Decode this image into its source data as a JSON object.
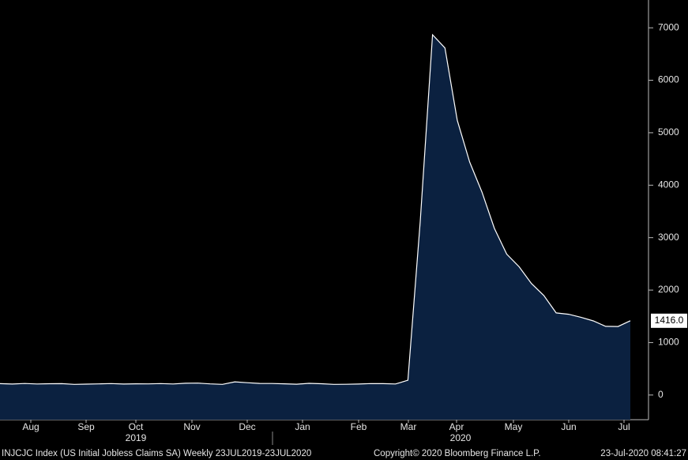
{
  "chart_data": {
    "type": "area",
    "months": [
      "Aug",
      "Sep",
      "Oct",
      "Nov",
      "Dec",
      "Jan",
      "Feb",
      "Mar",
      "Apr",
      "May",
      "Jun",
      "Jul"
    ],
    "years": [
      "2019",
      "2020"
    ],
    "values": [
      217,
      209,
      220,
      211,
      216,
      217,
      204,
      208,
      213,
      219,
      210,
      214,
      213,
      218,
      211,
      225,
      228,
      213,
      203,
      252,
      235,
      222,
      220,
      214,
      207,
      223,
      216,
      203,
      205,
      210,
      219,
      217,
      211,
      282,
      3307,
      6867,
      6615,
      5237,
      4442,
      3867,
      3176,
      2687,
      2446,
      2126,
      1897,
      1566,
      1540,
      1482,
      1413,
      1310,
      1307,
      1416
    ],
    "last_label": "1416.0",
    "color": "#0b2140",
    "line_color": "#ffffff",
    "ylim": [
      -470,
      7530
    ],
    "yticks": [
      0,
      1000,
      2000,
      3000,
      4000,
      5000,
      6000,
      7000
    ],
    "footer_left": "INJCJC Index (US Initial Jobless Claims SA)  Weekly 23JUL2019-23JUL2020",
    "footer_mid": "Copyright© 2020 Bloomberg Finance L.P.",
    "footer_right": "23-Jul-2020 08:41:27"
  }
}
